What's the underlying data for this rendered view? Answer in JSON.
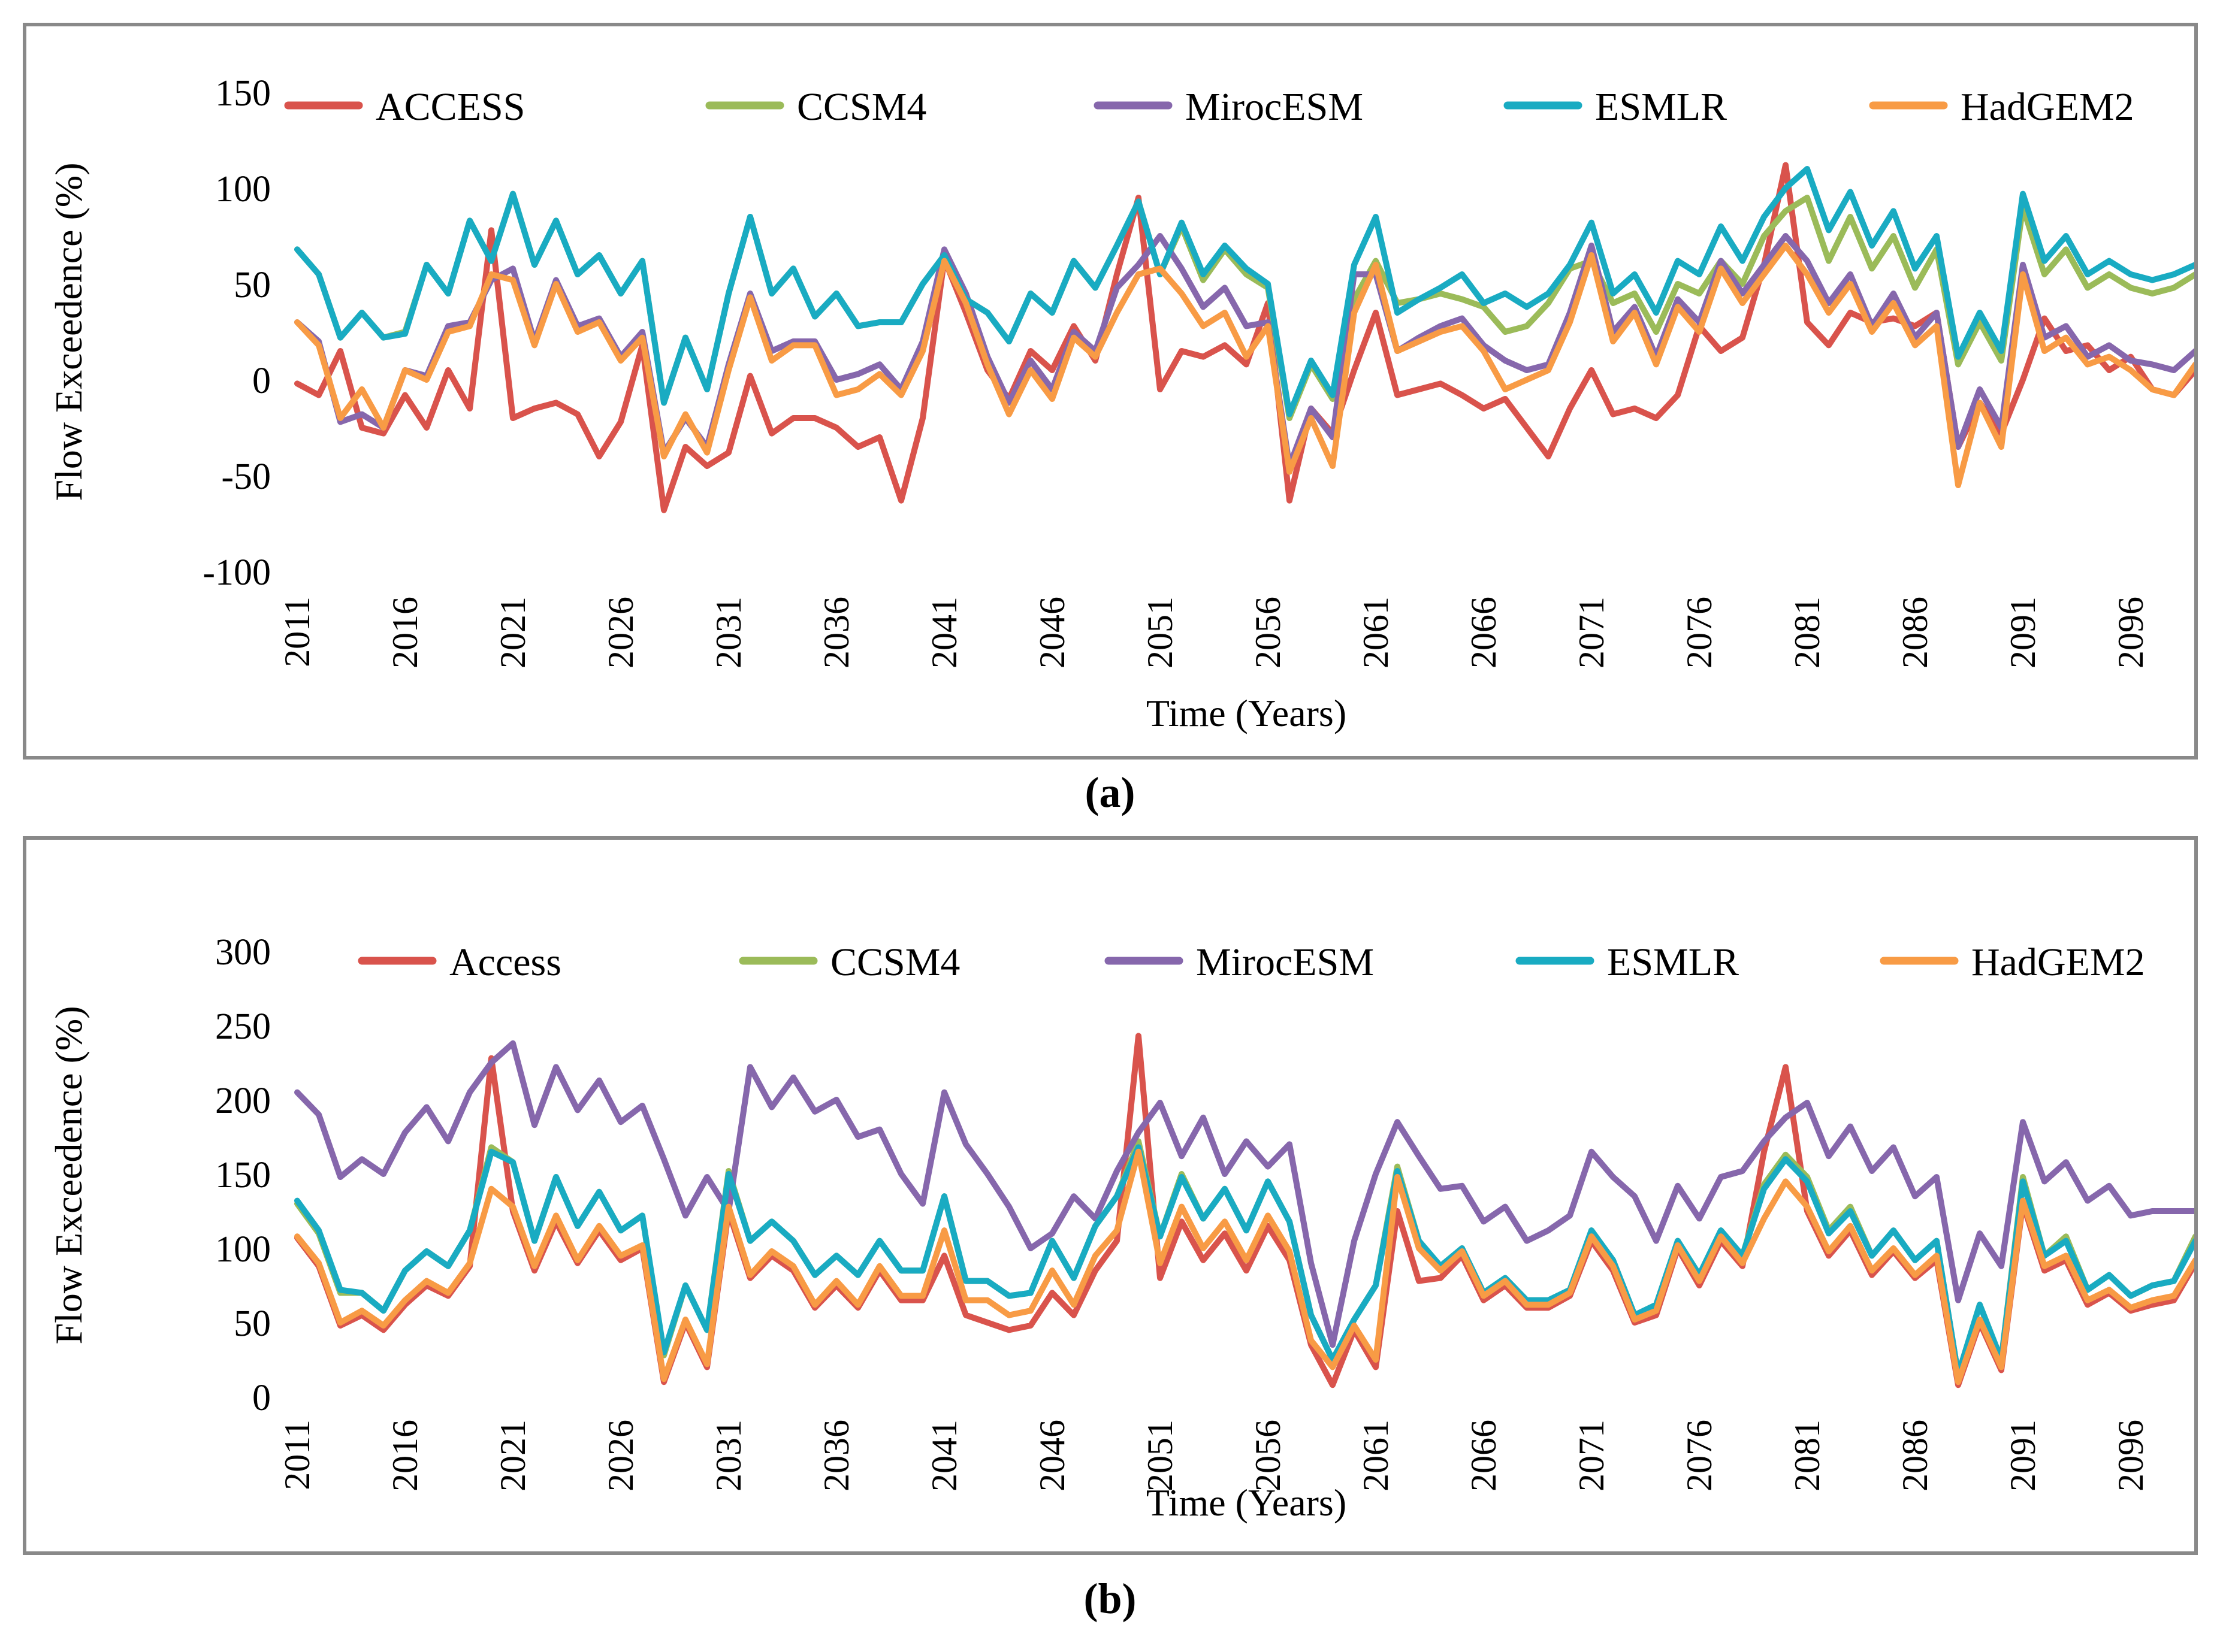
{
  "figure": {
    "captions": {
      "a": "(a)",
      "b": "(b)"
    }
  },
  "chart_data": [
    {
      "id": "a",
      "type": "line",
      "title": "",
      "xlabel": "Time (Years)",
      "ylabel": "Flow Exceedence (%)",
      "ylim": [
        -100,
        150
      ],
      "yticks": [
        150,
        100,
        50,
        0,
        -50,
        -100
      ],
      "x_start": 2011,
      "x_end": 2099,
      "xticks": [
        2011,
        2016,
        2021,
        2026,
        2031,
        2036,
        2041,
        2046,
        2051,
        2056,
        2061,
        2066,
        2071,
        2076,
        2081,
        2086,
        2091,
        2096
      ],
      "grid": false,
      "legend_position": "top",
      "series": [
        {
          "name": "ACCESS",
          "color": "#D9534C",
          "values": [
            -2,
            -8,
            15,
            -25,
            -28,
            -8,
            -25,
            5,
            -15,
            78,
            -20,
            -15,
            -12,
            -18,
            -40,
            -22,
            18,
            -68,
            -35,
            -45,
            -38,
            2,
            -28,
            -20,
            -20,
            -25,
            -35,
            -30,
            -63,
            -20,
            63,
            35,
            5,
            -10,
            15,
            5,
            28,
            10,
            55,
            95,
            -5,
            15,
            12,
            18,
            8,
            40,
            -63,
            -15,
            -28,
            5,
            35,
            -8,
            -5,
            -2,
            -8,
            -15,
            -10,
            -25,
            -40,
            -15,
            5,
            -18,
            -15,
            -20,
            -8,
            28,
            15,
            22,
            60,
            112,
            30,
            18,
            35,
            30,
            32,
            28,
            35,
            -35,
            -12,
            -28,
            0,
            32,
            15,
            18,
            5,
            12,
            -5,
            -8,
            5
          ]
        },
        {
          "name": "CCSM4",
          "color": "#9BBB59",
          "values": [
            68,
            55,
            22,
            35,
            22,
            25,
            60,
            45,
            83,
            62,
            97,
            60,
            83,
            55,
            65,
            45,
            62,
            -12,
            22,
            -5,
            45,
            85,
            45,
            58,
            33,
            45,
            28,
            30,
            30,
            50,
            65,
            42,
            35,
            20,
            45,
            35,
            62,
            48,
            70,
            93,
            55,
            80,
            52,
            68,
            55,
            48,
            -20,
            8,
            -10,
            42,
            62,
            40,
            42,
            45,
            42,
            38,
            25,
            28,
            40,
            58,
            62,
            40,
            45,
            25,
            50,
            45,
            62,
            50,
            75,
            88,
            95,
            62,
            85,
            58,
            75,
            48,
            68,
            8,
            30,
            10,
            90,
            55,
            68,
            48,
            55,
            48,
            45,
            48,
            55
          ]
        },
        {
          "name": "MirocESM",
          "color": "#8667AC",
          "values": [
            30,
            20,
            -22,
            -18,
            -25,
            5,
            2,
            28,
            30,
            52,
            58,
            20,
            52,
            28,
            32,
            12,
            25,
            -38,
            -20,
            -35,
            8,
            45,
            15,
            20,
            20,
            0,
            3,
            8,
            -5,
            20,
            68,
            45,
            12,
            -12,
            10,
            -5,
            25,
            15,
            48,
            60,
            75,
            58,
            38,
            48,
            28,
            30,
            -45,
            -15,
            -30,
            55,
            55,
            15,
            22,
            28,
            32,
            18,
            10,
            5,
            8,
            35,
            70,
            25,
            38,
            12,
            42,
            30,
            62,
            45,
            60,
            75,
            62,
            40,
            55,
            28,
            45,
            22,
            35,
            -35,
            -5,
            -25,
            60,
            22,
            28,
            12,
            18,
            10,
            8,
            5,
            15
          ]
        },
        {
          "name": "ESMLR",
          "color": "#19ABC2",
          "values": [
            68,
            55,
            22,
            35,
            22,
            24,
            60,
            45,
            83,
            62,
            97,
            60,
            83,
            55,
            65,
            45,
            62,
            -12,
            22,
            -5,
            45,
            85,
            45,
            58,
            33,
            45,
            28,
            30,
            30,
            50,
            65,
            42,
            35,
            20,
            45,
            35,
            62,
            48,
            70,
            93,
            55,
            82,
            55,
            70,
            58,
            50,
            -18,
            10,
            -8,
            60,
            85,
            35,
            42,
            48,
            55,
            40,
            45,
            38,
            45,
            60,
            82,
            45,
            55,
            35,
            62,
            55,
            80,
            62,
            85,
            100,
            110,
            78,
            98,
            70,
            88,
            58,
            75,
            12,
            35,
            15,
            97,
            62,
            75,
            55,
            62,
            55,
            52,
            55,
            60
          ]
        },
        {
          "name": "HadGEM2",
          "color": "#F89B45",
          "values": [
            30,
            18,
            -20,
            -5,
            -25,
            5,
            0,
            25,
            28,
            55,
            52,
            18,
            50,
            25,
            30,
            10,
            22,
            -40,
            -18,
            -38,
            5,
            43,
            10,
            18,
            18,
            -8,
            -5,
            3,
            -8,
            15,
            62,
            40,
            8,
            -18,
            5,
            -10,
            22,
            12,
            35,
            55,
            58,
            45,
            28,
            35,
            12,
            28,
            -48,
            -20,
            -45,
            35,
            60,
            15,
            20,
            25,
            28,
            15,
            -5,
            0,
            5,
            30,
            65,
            20,
            35,
            8,
            38,
            25,
            58,
            40,
            55,
            70,
            55,
            35,
            50,
            25,
            40,
            18,
            28,
            -55,
            -12,
            -35,
            55,
            15,
            22,
            8,
            12,
            5,
            -5,
            -8,
            8
          ]
        }
      ]
    },
    {
      "id": "b",
      "type": "line",
      "title": "",
      "xlabel": "Time (Years)",
      "ylabel": "Flow Exceedence (%)",
      "ylim": [
        0,
        300
      ],
      "yticks": [
        300,
        250,
        200,
        150,
        100,
        50,
        0
      ],
      "x_start": 2011,
      "x_end": 2099,
      "xticks": [
        2011,
        2016,
        2021,
        2026,
        2031,
        2036,
        2041,
        2046,
        2051,
        2056,
        2061,
        2066,
        2071,
        2076,
        2081,
        2086,
        2091,
        2096
      ],
      "grid": false,
      "legend_position": "top",
      "series": [
        {
          "name": "Access",
          "color": "#D9534C",
          "values": [
            107,
            88,
            48,
            55,
            45,
            62,
            75,
            68,
            88,
            228,
            125,
            85,
            118,
            90,
            112,
            92,
            100,
            10,
            50,
            20,
            125,
            80,
            95,
            85,
            60,
            75,
            60,
            85,
            65,
            65,
            95,
            55,
            50,
            45,
            48,
            70,
            55,
            85,
            105,
            243,
            80,
            118,
            92,
            110,
            85,
            115,
            92,
            35,
            8,
            45,
            20,
            125,
            78,
            80,
            95,
            65,
            75,
            60,
            60,
            68,
            105,
            85,
            50,
            55,
            100,
            75,
            105,
            88,
            165,
            222,
            125,
            95,
            112,
            82,
            98,
            80,
            92,
            8,
            50,
            18,
            130,
            85,
            92,
            62,
            70,
            58,
            62,
            65,
            90
          ]
        },
        {
          "name": "CCSM4",
          "color": "#9BBB59",
          "values": [
            130,
            110,
            70,
            70,
            58,
            85,
            98,
            88,
            112,
            168,
            158,
            105,
            148,
            115,
            138,
            112,
            122,
            28,
            75,
            45,
            152,
            105,
            118,
            105,
            82,
            95,
            82,
            105,
            85,
            85,
            135,
            78,
            78,
            68,
            70,
            105,
            80,
            115,
            135,
            172,
            108,
            150,
            120,
            140,
            112,
            145,
            118,
            55,
            25,
            52,
            75,
            155,
            105,
            88,
            100,
            70,
            80,
            65,
            65,
            72,
            112,
            92,
            55,
            62,
            105,
            82,
            112,
            95,
            143,
            163,
            148,
            112,
            128,
            95,
            112,
            92,
            105,
            15,
            62,
            25,
            148,
            95,
            108,
            72,
            82,
            68,
            75,
            78,
            108
          ]
        },
        {
          "name": "MirocESM",
          "color": "#8667AC",
          "values": [
            205,
            190,
            148,
            160,
            150,
            178,
            195,
            172,
            205,
            225,
            238,
            183,
            222,
            193,
            213,
            185,
            196,
            160,
            122,
            148,
            125,
            222,
            195,
            215,
            192,
            200,
            175,
            180,
            150,
            130,
            205,
            170,
            150,
            128,
            100,
            110,
            135,
            120,
            152,
            178,
            198,
            162,
            188,
            150,
            172,
            155,
            170,
            90,
            35,
            105,
            150,
            185,
            162,
            140,
            142,
            118,
            128,
            105,
            112,
            122,
            165,
            148,
            135,
            105,
            142,
            120,
            148,
            152,
            172,
            188,
            198,
            162,
            182,
            152,
            168,
            135,
            148,
            65,
            110,
            88,
            185,
            145,
            158,
            132,
            142,
            122,
            125,
            125,
            125
          ]
        },
        {
          "name": "ESMLR",
          "color": "#19ABC2",
          "values": [
            132,
            112,
            72,
            70,
            58,
            85,
            98,
            88,
            112,
            165,
            158,
            105,
            148,
            115,
            138,
            112,
            122,
            30,
            75,
            45,
            150,
            105,
            118,
            105,
            82,
            95,
            82,
            105,
            85,
            85,
            135,
            78,
            78,
            68,
            70,
            105,
            80,
            115,
            135,
            168,
            108,
            148,
            120,
            140,
            112,
            145,
            118,
            55,
            25,
            52,
            75,
            152,
            105,
            88,
            100,
            70,
            80,
            65,
            65,
            72,
            112,
            92,
            55,
            62,
            105,
            82,
            112,
            95,
            140,
            160,
            145,
            110,
            125,
            95,
            112,
            92,
            105,
            15,
            62,
            25,
            145,
            95,
            105,
            72,
            82,
            68,
            75,
            78,
            105
          ]
        },
        {
          "name": "HadGEM2",
          "color": "#F89B45",
          "values": [
            108,
            90,
            50,
            58,
            48,
            65,
            78,
            70,
            90,
            140,
            128,
            88,
            122,
            92,
            115,
            95,
            102,
            12,
            52,
            22,
            128,
            82,
            98,
            88,
            62,
            78,
            62,
            88,
            68,
            68,
            112,
            65,
            65,
            55,
            58,
            85,
            62,
            95,
            112,
            165,
            90,
            128,
            100,
            118,
            92,
            122,
            98,
            38,
            20,
            48,
            25,
            148,
            100,
            85,
            98,
            68,
            78,
            62,
            62,
            70,
            108,
            88,
            52,
            58,
            102,
            78,
            108,
            90,
            120,
            145,
            128,
            98,
            115,
            85,
            100,
            82,
            95,
            10,
            52,
            20,
            132,
            88,
            95,
            65,
            72,
            60,
            65,
            68,
            92
          ]
        }
      ]
    }
  ]
}
